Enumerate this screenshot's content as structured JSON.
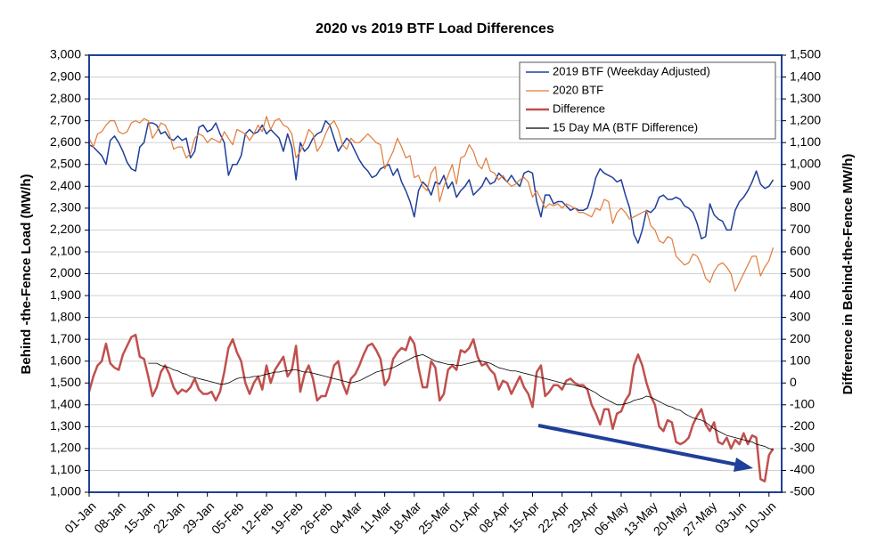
{
  "chart_data": {
    "type": "line",
    "title": "2020 vs 2019 BTF Load Differences",
    "ylabel": "Behind -the-Fence Load (MW/h)",
    "y2label": "Difference in Behind-the-Fence  MW/h)",
    "grid": true,
    "legend": "upper right",
    "categories": [
      "01-Jan",
      null,
      null,
      null,
      null,
      null,
      null,
      "08-Jan",
      null,
      null,
      null,
      null,
      null,
      null,
      "15-Jan",
      null,
      null,
      null,
      null,
      null,
      null,
      "22-Jan",
      null,
      null,
      null,
      null,
      null,
      null,
      "29-Jan",
      null,
      null,
      null,
      null,
      null,
      null,
      "05-Feb",
      null,
      null,
      null,
      null,
      null,
      null,
      "12-Feb",
      null,
      null,
      null,
      null,
      null,
      null,
      "19-Feb",
      null,
      null,
      null,
      null,
      null,
      null,
      "26-Feb",
      null,
      null,
      null,
      null,
      null,
      null,
      "04-Mar",
      null,
      null,
      null,
      null,
      null,
      null,
      "11-Mar",
      null,
      null,
      null,
      null,
      null,
      null,
      "18-Mar",
      null,
      null,
      null,
      null,
      null,
      null,
      "25-Mar",
      null,
      null,
      null,
      null,
      null,
      null,
      "01-Apr",
      null,
      null,
      null,
      null,
      null,
      null,
      "08-Apr",
      null,
      null,
      null,
      null,
      null,
      null,
      "15-Apr",
      null,
      null,
      null,
      null,
      null,
      null,
      "22-Apr",
      null,
      null,
      null,
      null,
      null,
      null,
      "29-Apr",
      null,
      null,
      null,
      null,
      null,
      null,
      "06-May",
      null,
      null,
      null,
      null,
      null,
      null,
      "13-May",
      null,
      null,
      null,
      null,
      null,
      null,
      "20-May",
      null,
      null,
      null,
      null,
      null,
      null,
      "27-May",
      null,
      null,
      null,
      null,
      null,
      null,
      "03-Jun",
      null,
      null,
      null,
      null,
      null,
      null,
      "10-Jun",
      null
    ],
    "ylim": [
      1000,
      3000
    ],
    "yticks": [
      {
        "value": 1000,
        "label": "1,000"
      },
      {
        "value": 1100,
        "label": "1,100"
      },
      {
        "value": 1200,
        "label": "1,200"
      },
      {
        "value": 1300,
        "label": "1,300"
      },
      {
        "value": 1400,
        "label": "1,400"
      },
      {
        "value": 1500,
        "label": "1,500"
      },
      {
        "value": 1600,
        "label": "1,600"
      },
      {
        "value": 1700,
        "label": "1,700"
      },
      {
        "value": 1800,
        "label": "1,800"
      },
      {
        "value": 1900,
        "label": "1,900"
      },
      {
        "value": 2000,
        "label": "2,000"
      },
      {
        "value": 2100,
        "label": "2,100"
      },
      {
        "value": 2200,
        "label": "2,200"
      },
      {
        "value": 2300,
        "label": "2,300"
      },
      {
        "value": 2400,
        "label": "2,400"
      },
      {
        "value": 2500,
        "label": "2,500"
      },
      {
        "value": 2600,
        "label": "2,600"
      },
      {
        "value": 2700,
        "label": "2,700"
      },
      {
        "value": 2800,
        "label": "2,800"
      },
      {
        "value": 2900,
        "label": "2,900"
      },
      {
        "value": 3000,
        "label": "3,000"
      }
    ],
    "y2lim": [
      -500,
      1500
    ],
    "y2ticks": [
      -500,
      -400,
      -300,
      -200,
      -100,
      0,
      100,
      200,
      300,
      400,
      500,
      600,
      700,
      800,
      900,
      {
        "value": 1000,
        "label": "1,000"
      },
      {
        "value": 1100,
        "label": "1,100"
      },
      {
        "value": 1200,
        "label": "1,200"
      },
      {
        "value": 1300,
        "label": "1,300"
      },
      {
        "value": 1400,
        "label": "1,400"
      },
      {
        "value": 1500,
        "label": "1,500"
      }
    ],
    "series": [
      {
        "name": "2019 BTF (Weekday Adjusted)",
        "color": "#1f3f9a",
        "width": 1.5,
        "axis": "y",
        "values": [
          2590,
          2580,
          2560,
          2540,
          2500,
          2610,
          2630,
          2600,
          2560,
          2510,
          2480,
          2470,
          2580,
          2600,
          2690,
          2690,
          2680,
          2640,
          2650,
          2620,
          2610,
          2630,
          2610,
          2620,
          2530,
          2560,
          2670,
          2680,
          2650,
          2660,
          2690,
          2640,
          2600,
          2450,
          2500,
          2500,
          2540,
          2640,
          2660,
          2640,
          2650,
          2680,
          2640,
          2660,
          2640,
          2620,
          2560,
          2640,
          2580,
          2430,
          2600,
          2560,
          2580,
          2620,
          2640,
          2650,
          2700,
          2680,
          2620,
          2560,
          2590,
          2620,
          2600,
          2560,
          2520,
          2490,
          2470,
          2440,
          2450,
          2480,
          2490,
          2500,
          2450,
          2480,
          2420,
          2380,
          2330,
          2260,
          2380,
          2420,
          2400,
          2360,
          2420,
          2410,
          2450,
          2390,
          2420,
          2350,
          2380,
          2400,
          2430,
          2360,
          2380,
          2400,
          2440,
          2410,
          2420,
          2460,
          2440,
          2420,
          2450,
          2420,
          2400,
          2460,
          2470,
          2460,
          2330,
          2260,
          2360,
          2360,
          2320,
          2330,
          2330,
          2310,
          2290,
          2300,
          2290,
          2290,
          2300,
          2360,
          2440,
          2480,
          2460,
          2450,
          2440,
          2420,
          2430,
          2360,
          2300,
          2180,
          2140,
          2200,
          2290,
          2280,
          2300,
          2350,
          2360,
          2340,
          2340,
          2350,
          2340,
          2310,
          2300,
          2280,
          2230,
          2160,
          2170,
          2320,
          2270,
          2250,
          2240,
          2200,
          2200,
          2290,
          2330,
          2350,
          2380,
          2420,
          2470,
          2410,
          2390,
          2400,
          2430
        ]
      },
      {
        "name": "2020 BTF",
        "color": "#e07b39",
        "width": 1.2,
        "axis": "y",
        "values": [
          2620,
          2580,
          2640,
          2650,
          2680,
          2700,
          2700,
          2650,
          2640,
          2650,
          2690,
          2700,
          2690,
          2710,
          2700,
          2620,
          2650,
          2690,
          2680,
          2640,
          2570,
          2580,
          2580,
          2530,
          2550,
          2620,
          2640,
          2630,
          2600,
          2620,
          2610,
          2600,
          2650,
          2620,
          2590,
          2660,
          2650,
          2640,
          2610,
          2640,
          2680,
          2650,
          2720,
          2660,
          2700,
          2710,
          2680,
          2670,
          2640,
          2530,
          2560,
          2600,
          2660,
          2640,
          2560,
          2590,
          2640,
          2680,
          2700,
          2660,
          2590,
          2570,
          2620,
          2600,
          2600,
          2620,
          2640,
          2620,
          2600,
          2590,
          2480,
          2520,
          2560,
          2620,
          2580,
          2530,
          2540,
          2440,
          2450,
          2400,
          2380,
          2460,
          2490,
          2330,
          2400,
          2450,
          2500,
          2410,
          2530,
          2540,
          2590,
          2560,
          2500,
          2480,
          2530,
          2470,
          2460,
          2430,
          2450,
          2420,
          2400,
          2410,
          2430,
          2440,
          2420,
          2350,
          2380,
          2340,
          2300,
          2320,
          2310,
          2320,
          2300,
          2320,
          2310,
          2300,
          2280,
          2280,
          2270,
          2260,
          2300,
          2290,
          2340,
          2330,
          2230,
          2280,
          2300,
          2280,
          2250,
          2260,
          2270,
          2280,
          2290,
          2220,
          2200,
          2150,
          2140,
          2170,
          2160,
          2080,
          2060,
          2040,
          2050,
          2090,
          2080,
          2040,
          1980,
          1960,
          2010,
          2040,
          2050,
          2030,
          2000,
          1920,
          1960,
          2000,
          2040,
          2080,
          2080,
          1990,
          2030,
          2060,
          2120
        ]
      },
      {
        "name": "Difference",
        "color": "#c0504d",
        "width": 2.5,
        "axis": "y2",
        "values": [
          -40,
          30,
          80,
          100,
          180,
          90,
          70,
          60,
          130,
          170,
          210,
          220,
          120,
          110,
          30,
          -60,
          -20,
          50,
          80,
          40,
          -20,
          -50,
          -30,
          -40,
          -20,
          20,
          -30,
          -50,
          -50,
          -40,
          -80,
          -40,
          50,
          160,
          200,
          140,
          100,
          0,
          -50,
          0,
          30,
          -30,
          80,
          0,
          60,
          90,
          120,
          30,
          60,
          170,
          -40,
          40,
          80,
          20,
          -80,
          -60,
          -60,
          0,
          80,
          100,
          0,
          -50,
          20,
          40,
          80,
          130,
          170,
          180,
          150,
          110,
          -10,
          20,
          110,
          140,
          160,
          150,
          210,
          180,
          70,
          -20,
          -20,
          100,
          70,
          -80,
          -50,
          60,
          80,
          60,
          150,
          140,
          160,
          200,
          120,
          80,
          90,
          60,
          40,
          -30,
          10,
          0,
          -50,
          -10,
          30,
          -20,
          -50,
          -110,
          50,
          80,
          -60,
          -40,
          -10,
          -10,
          -30,
          10,
          20,
          0,
          -10,
          -10,
          -30,
          -100,
          -140,
          -190,
          -120,
          -120,
          -210,
          -140,
          -130,
          -80,
          -50,
          80,
          130,
          80,
          0,
          -60,
          -100,
          -200,
          -220,
          -170,
          -180,
          -270,
          -280,
          -270,
          -250,
          -190,
          -150,
          -120,
          -190,
          -220,
          -180,
          -270,
          -280,
          -250,
          -300,
          -260,
          -280,
          -230,
          -280,
          -240,
          -250,
          -440,
          -450,
          -330,
          -300
        ]
      },
      {
        "name": "15 Day MA (BTF Difference)",
        "color": "#000000",
        "width": 0.8,
        "axis": "y2",
        "values": [
          null,
          null,
          null,
          null,
          null,
          null,
          null,
          null,
          null,
          null,
          null,
          null,
          null,
          null,
          90,
          90,
          90,
          80,
          75,
          70,
          60,
          55,
          45,
          40,
          30,
          25,
          20,
          15,
          10,
          5,
          0,
          -5,
          -5,
          0,
          10,
          20,
          25,
          25,
          25,
          30,
          30,
          35,
          40,
          45,
          50,
          50,
          55,
          55,
          60,
          60,
          55,
          50,
          50,
          45,
          40,
          35,
          30,
          25,
          20,
          15,
          10,
          5,
          0,
          5,
          10,
          20,
          30,
          40,
          50,
          55,
          60,
          65,
          70,
          80,
          90,
          100,
          110,
          120,
          125,
          130,
          120,
          110,
          100,
          95,
          90,
          85,
          85,
          80,
          80,
          85,
          90,
          95,
          100,
          100,
          95,
          90,
          80,
          70,
          65,
          60,
          55,
          55,
          50,
          45,
          40,
          35,
          30,
          25,
          20,
          15,
          10,
          5,
          0,
          -5,
          -5,
          -10,
          -15,
          -20,
          -25,
          -35,
          -45,
          -60,
          -70,
          -80,
          -90,
          -100,
          -100,
          -95,
          -90,
          -80,
          -75,
          -70,
          -60,
          -65,
          -75,
          -85,
          -95,
          -105,
          -110,
          -120,
          -125,
          -140,
          -150,
          -160,
          -165,
          -170,
          -180,
          -195,
          -210,
          -220,
          -230,
          -240,
          -245,
          -250,
          -255,
          -260,
          -265,
          -270,
          -280,
          -285,
          -290,
          -300,
          -305
        ]
      }
    ]
  }
}
